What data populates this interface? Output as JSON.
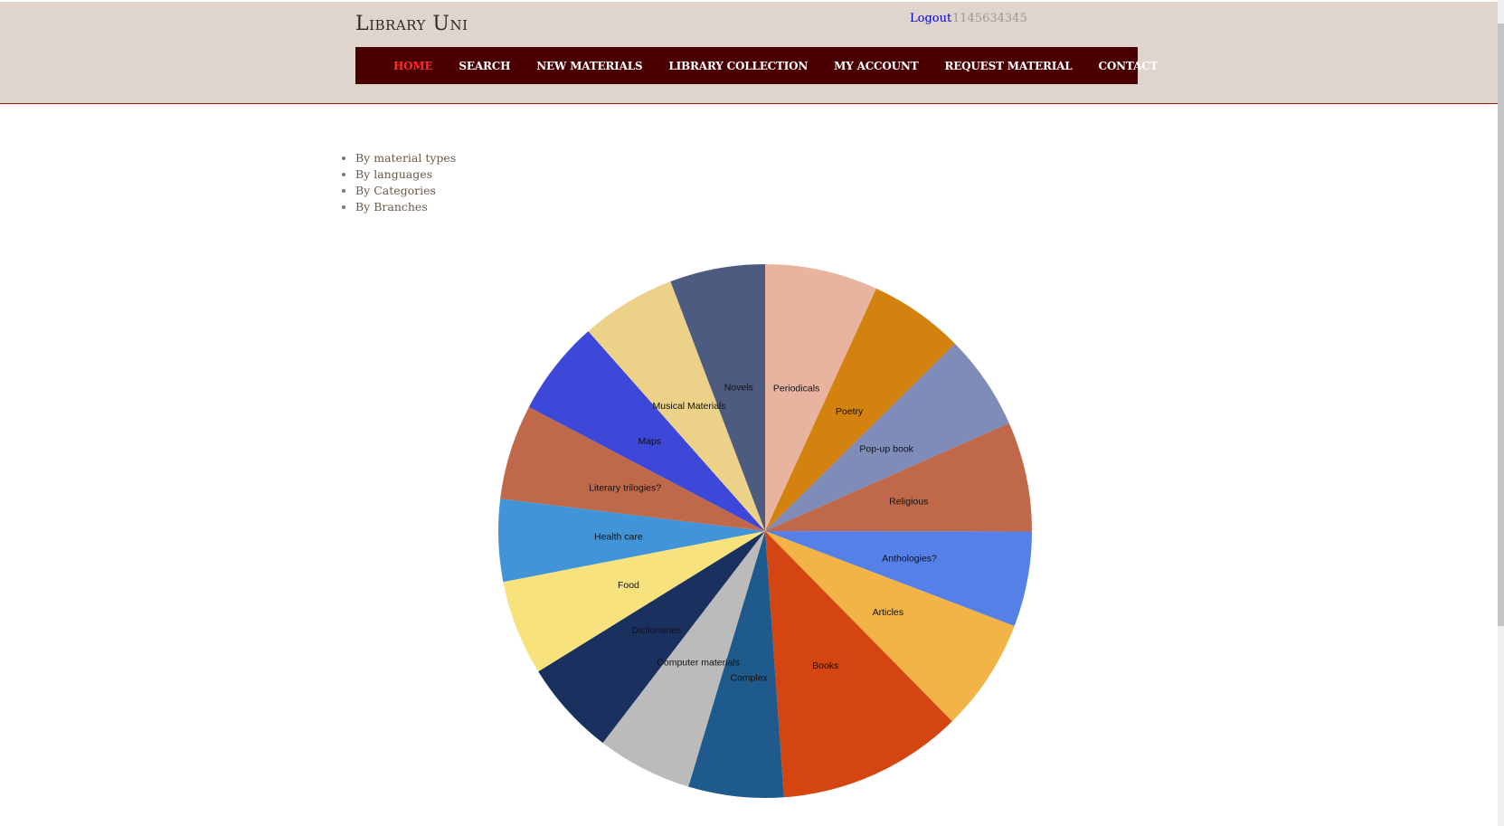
{
  "header": {
    "site_title": "Library Uni",
    "logout_label": "Logout",
    "user_id": "1145634345"
  },
  "nav": {
    "items": [
      {
        "label": "HOME",
        "active": true
      },
      {
        "label": "SEARCH",
        "active": false
      },
      {
        "label": "NEW MATERIALS",
        "active": false
      },
      {
        "label": "LIBRARY COLLECTION",
        "active": false
      },
      {
        "label": "MY ACCOUNT",
        "active": false
      },
      {
        "label": "REQUEST MATERIAL",
        "active": false
      },
      {
        "label": "CONTACT",
        "active": false
      }
    ]
  },
  "filters": [
    "By material types",
    "By languages",
    "By Categories",
    "By Branches"
  ],
  "colors": {
    "header_bg": "#dfd5cc",
    "nav_bg": "#4a0000",
    "nav_active": "#ff2a2a",
    "link": "#0000cc"
  },
  "chart_data": {
    "type": "pie",
    "title": "",
    "slices": [
      {
        "label": "Periodicals",
        "value": 7.0,
        "color": "#e8b4a0"
      },
      {
        "label": "Poetry",
        "value": 5.9,
        "color": "#d4820f"
      },
      {
        "label": "Pop-up book",
        "value": 5.9,
        "color": "#7f8cba"
      },
      {
        "label": "Religious",
        "value": 6.8,
        "color": "#c0684a"
      },
      {
        "label": "Anthologies?",
        "value": 5.9,
        "color": "#5580e8"
      },
      {
        "label": "Articles",
        "value": 7.0,
        "color": "#f2b347"
      },
      {
        "label": "Books",
        "value": 11.5,
        "color": "#d44512"
      },
      {
        "label": "Complex",
        "value": 5.9,
        "color": "#1f5a8c"
      },
      {
        "label": "Computer materials",
        "value": 5.9,
        "color": "#bbbbbb"
      },
      {
        "label": "Dictionaries",
        "value": 5.9,
        "color": "#1a3160"
      },
      {
        "label": "Food",
        "value": 5.9,
        "color": "#f7e27e"
      },
      {
        "label": "Health care",
        "value": 5.1,
        "color": "#4294d8"
      },
      {
        "label": "Literary trilogies?",
        "value": 5.9,
        "color": "#c0684a"
      },
      {
        "label": "Maps",
        "value": 5.9,
        "color": "#3d47d8"
      },
      {
        "label": "Musical Materials",
        "value": 5.9,
        "color": "#ecd188"
      },
      {
        "label": "Novels",
        "value": 5.9,
        "color": "#4e5b80"
      }
    ]
  }
}
